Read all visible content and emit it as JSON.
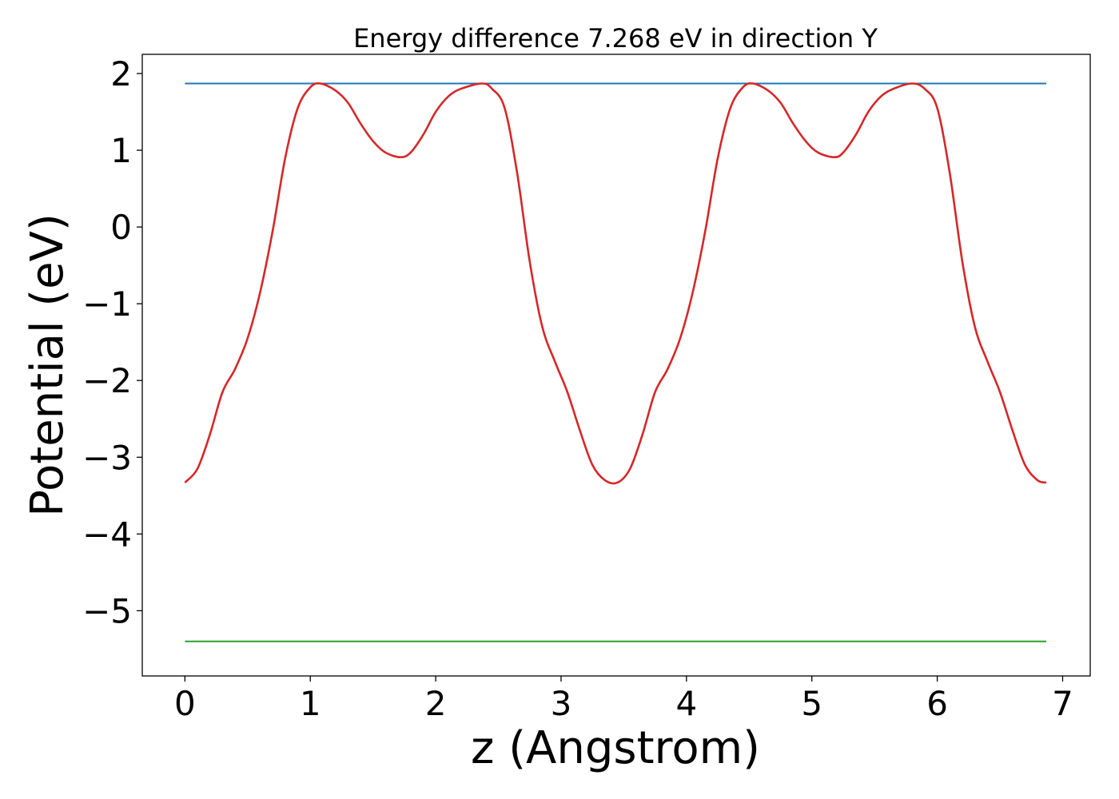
{
  "chart_data": {
    "type": "line",
    "title": "Energy difference 7.268 eV in direction Y",
    "xlabel": "z (Angstrom)",
    "ylabel": "Potential (eV)",
    "xlim": [
      -0.34,
      7.22
    ],
    "ylim": [
      -5.85,
      2.25
    ],
    "xticks": [
      0,
      1,
      2,
      3,
      4,
      5,
      6,
      7
    ],
    "yticks": [
      2,
      1,
      0,
      -1,
      -2,
      -3,
      -4,
      -5
    ],
    "xtick_labels": [
      "0",
      "1",
      "2",
      "3",
      "4",
      "5",
      "6",
      "7"
    ],
    "ytick_labels": [
      "2",
      "1",
      "0",
      "−1",
      "−2",
      "−3",
      "−4",
      "−5"
    ],
    "grid": false,
    "legend": "none",
    "series": [
      {
        "color": "#d62728",
        "x": [
          0,
          0.1,
          0.2,
          0.3,
          0.4,
          0.5,
          0.6,
          0.7,
          0.8,
          0.9,
          1.0,
          1.08,
          1.2,
          1.3,
          1.4,
          1.5,
          1.6,
          1.72,
          1.8,
          1.9,
          2.0,
          2.1,
          2.2,
          2.37,
          2.45,
          2.55,
          2.65,
          2.75,
          2.85,
          2.95,
          3.05,
          3.15,
          3.25,
          3.35,
          3.45,
          3.55,
          3.65,
          3.75,
          3.85,
          3.95,
          4.05,
          4.15,
          4.25,
          4.35,
          4.45,
          4.53,
          4.65,
          4.75,
          4.85,
          4.95,
          5.05,
          5.18,
          5.25,
          5.35,
          5.45,
          5.55,
          5.65,
          5.8,
          5.9,
          6.0,
          6.1,
          6.2,
          6.3,
          6.4,
          6.5,
          6.6,
          6.7,
          6.8,
          6.87
        ],
        "y": [
          -3.33,
          -3.15,
          -2.7,
          -2.15,
          -1.85,
          -1.45,
          -0.85,
          -0.05,
          0.9,
          1.55,
          1.82,
          1.87,
          1.78,
          1.62,
          1.35,
          1.12,
          0.97,
          0.91,
          0.97,
          1.2,
          1.5,
          1.7,
          1.8,
          1.87,
          1.8,
          1.55,
          0.7,
          -0.45,
          -1.3,
          -1.75,
          -2.15,
          -2.65,
          -3.1,
          -3.3,
          -3.33,
          -3.15,
          -2.7,
          -2.15,
          -1.85,
          -1.45,
          -0.85,
          -0.05,
          0.9,
          1.55,
          1.82,
          1.87,
          1.78,
          1.62,
          1.35,
          1.12,
          0.97,
          0.91,
          0.97,
          1.2,
          1.5,
          1.7,
          1.8,
          1.87,
          1.8,
          1.55,
          0.7,
          -0.45,
          -1.3,
          -1.75,
          -2.15,
          -2.65,
          -3.1,
          -3.3,
          -3.33
        ]
      },
      {
        "color": "#1f77b4",
        "x": [
          0,
          6.87
        ],
        "y": [
          1.87,
          1.87
        ]
      },
      {
        "color": "#2ca02c",
        "x": [
          0,
          6.87
        ],
        "y": [
          -5.4,
          -5.4
        ]
      }
    ]
  }
}
